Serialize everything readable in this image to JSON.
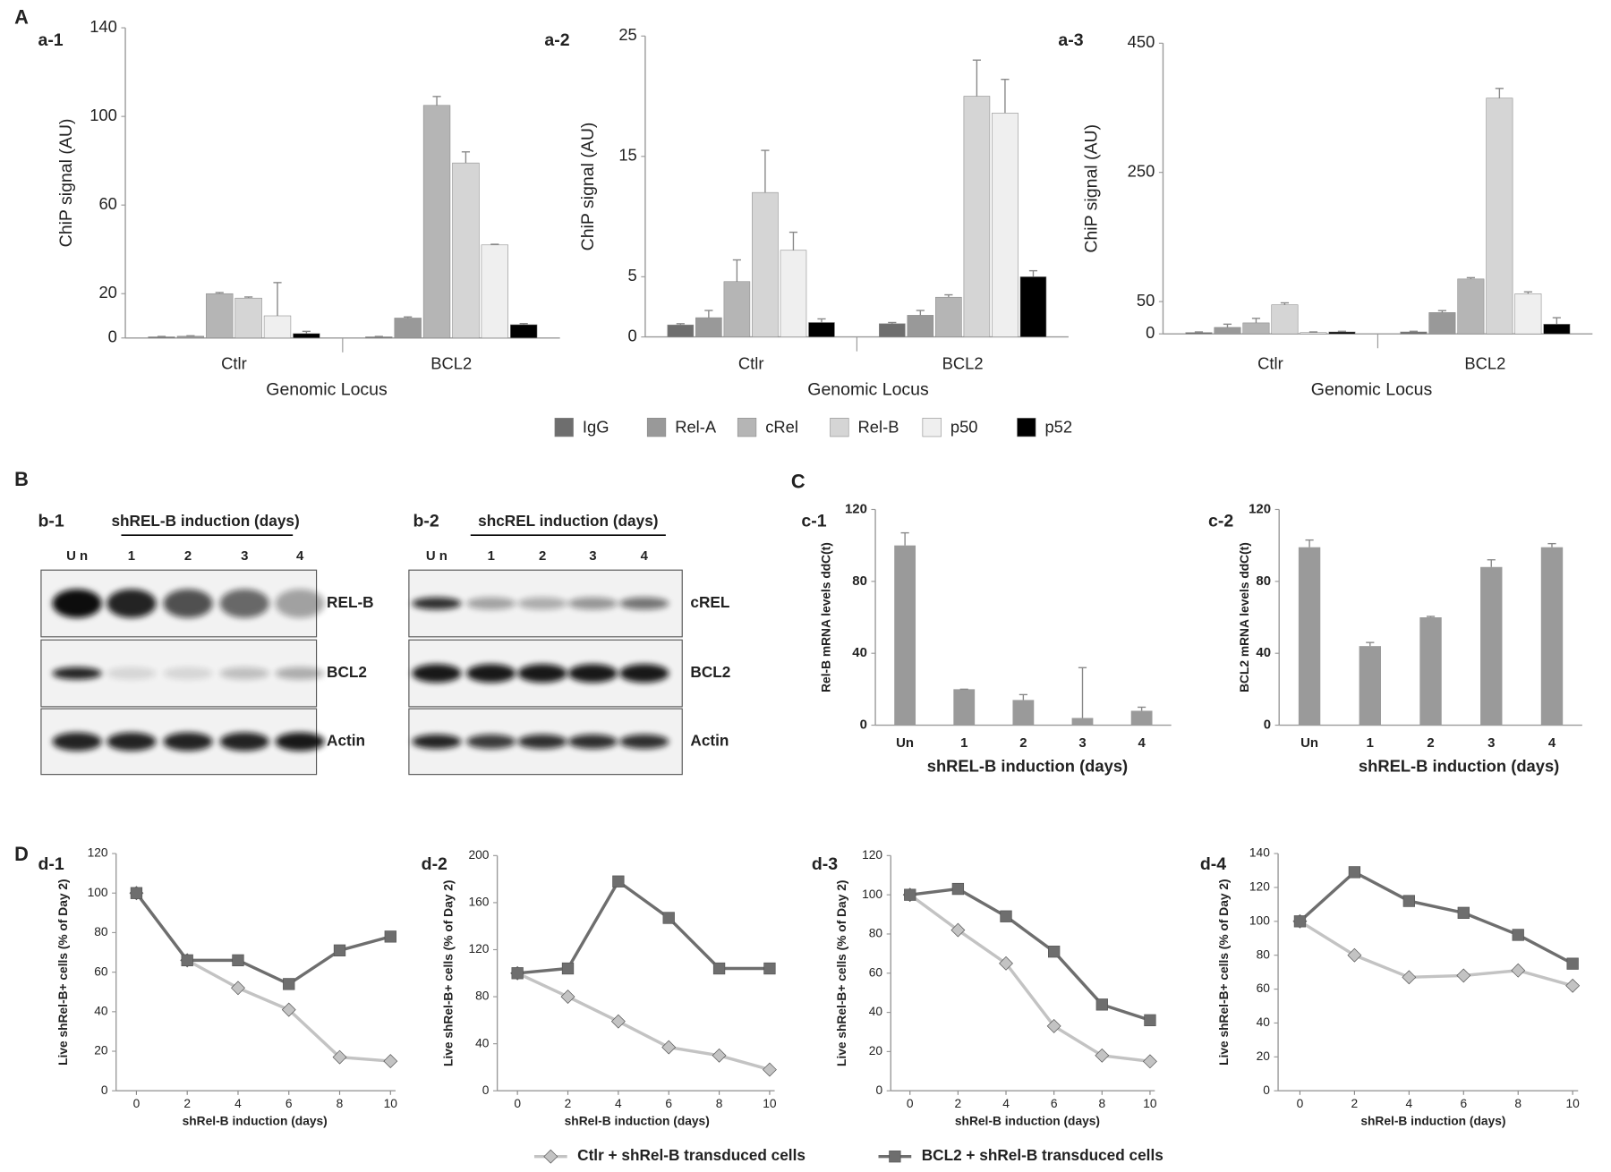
{
  "panels": [
    "A",
    "B",
    "C",
    "D"
  ],
  "blots": [
    {
      "label": "b-1",
      "title": "shREL-B induction (days)",
      "lanes": [
        "U n",
        "1",
        "2",
        "3",
        "4"
      ],
      "rows": [
        "REL-B",
        "BCL2",
        "Actin"
      ]
    },
    {
      "label": "b-2",
      "title": "shcREL induction (days)",
      "lanes": [
        "U n",
        "1",
        "2",
        "3",
        "4"
      ],
      "rows": [
        "cREL",
        "BCL2",
        "Actin"
      ]
    }
  ],
  "chart_data": [
    {
      "type": "bar",
      "label": "a-1",
      "y_label": "ChiP signal (AU)",
      "x_label": "Genomic Locus",
      "categories": [
        "Ctlr",
        "BCL2"
      ],
      "ylim": [
        0,
        140
      ],
      "yticks": [
        0,
        20,
        60,
        100,
        140
      ],
      "series": [
        {
          "name": "IgG",
          "color": "#6e6e6e",
          "values": [
            0.5,
            0.5
          ],
          "errors": [
            0.2,
            0.2
          ]
        },
        {
          "name": "Rel-A",
          "color": "#999999",
          "values": [
            0.8,
            9
          ],
          "errors": [
            0.2,
            0.5
          ]
        },
        {
          "name": "cRel",
          "color": "#b5b5b5",
          "values": [
            20,
            105
          ],
          "errors": [
            0.5,
            4
          ]
        },
        {
          "name": "Rel-B",
          "color": "#d5d5d5",
          "values": [
            18,
            79
          ],
          "errors": [
            0.5,
            5
          ]
        },
        {
          "name": "p50",
          "color": "#efefef",
          "values": [
            10,
            42
          ],
          "errors": [
            15,
            0.3
          ]
        },
        {
          "name": "p52",
          "color": "#000000",
          "values": [
            2,
            6
          ],
          "errors": [
            1,
            0.5
          ]
        }
      ]
    },
    {
      "type": "bar",
      "label": "a-2",
      "y_label": "ChiP signal (AU)",
      "x_label": "Genomic Locus",
      "categories": [
        "Ctlr",
        "BCL2"
      ],
      "ylim": [
        0,
        25
      ],
      "yticks": [
        0,
        5,
        15,
        25
      ],
      "series": [
        {
          "color": "#6e6e6e",
          "values": [
            1,
            1.1
          ],
          "errors": [
            0.1,
            0.1
          ]
        },
        {
          "color": "#999999",
          "values": [
            1.6,
            1.8
          ],
          "errors": [
            0.6,
            0.4
          ]
        },
        {
          "color": "#b5b5b5",
          "values": [
            4.6,
            3.3
          ],
          "errors": [
            1.8,
            0.2
          ]
        },
        {
          "color": "#d5d5d5",
          "values": [
            12,
            20
          ],
          "errors": [
            3.5,
            3
          ]
        },
        {
          "color": "#efefef",
          "values": [
            7.2,
            18.6
          ],
          "errors": [
            1.5,
            2.8
          ]
        },
        {
          "color": "#000000",
          "values": [
            1.2,
            5
          ],
          "errors": [
            0.3,
            0.5
          ]
        }
      ]
    },
    {
      "type": "bar",
      "label": "a-3",
      "y_label": "ChiP signal (AU)",
      "x_label": "Genomic Locus",
      "categories": [
        "Ctlr",
        "BCL2"
      ],
      "ylim": [
        0,
        450
      ],
      "yticks": [
        0,
        50,
        250,
        450
      ],
      "series": [
        {
          "color": "#6e6e6e",
          "values": [
            2,
            3
          ],
          "errors": [
            1,
            1
          ]
        },
        {
          "color": "#999999",
          "values": [
            10,
            33
          ],
          "errors": [
            5,
            3
          ]
        },
        {
          "color": "#b5b5b5",
          "values": [
            17,
            85
          ],
          "errors": [
            7,
            2
          ]
        },
        {
          "color": "#d5d5d5",
          "values": [
            45,
            365
          ],
          "errors": [
            3,
            15
          ]
        },
        {
          "color": "#efefef",
          "values": [
            2,
            62
          ],
          "errors": [
            1,
            3
          ]
        },
        {
          "color": "#000000",
          "values": [
            3,
            15
          ],
          "errors": [
            1,
            10
          ]
        }
      ]
    },
    {
      "type": "bar",
      "label": "c-1",
      "y_label": "Rel-B mRNA levels ddC(t)",
      "x_label": "shREL-B induction (days)",
      "categories": [
        "Un",
        "1",
        "2",
        "3",
        "4"
      ],
      "values": [
        100,
        20,
        14,
        4,
        8
      ],
      "errors": [
        7,
        0,
        3,
        28,
        2
      ],
      "color": "#9a9a9a",
      "ylim": [
        0,
        120
      ],
      "yticks": [
        0,
        40,
        80,
        120
      ]
    },
    {
      "type": "bar",
      "label": "c-2",
      "y_label": "BCL2 mRNA levels ddC(t)",
      "x_label": "shREL-B induction (days)",
      "categories": [
        "Un",
        "1",
        "2",
        "3",
        "4"
      ],
      "values": [
        99,
        44,
        60,
        88,
        99
      ],
      "errors": [
        4,
        2,
        0.5,
        4,
        2
      ],
      "color": "#9a9a9a",
      "ylim": [
        0,
        120
      ],
      "yticks": [
        0,
        40,
        80,
        120
      ]
    },
    {
      "type": "line",
      "label": "d-1",
      "y_label": "Live shRel-B+ cells (% of Day 2)",
      "x_label": "shRel-B induction (days)",
      "x": [
        0,
        2,
        4,
        6,
        8,
        10
      ],
      "xlim": [
        -0.8,
        10.2
      ],
      "xticks": [
        0,
        2,
        4,
        6,
        8,
        10
      ],
      "ylim": [
        0,
        120
      ],
      "yticks": [
        0,
        20,
        40,
        60,
        80,
        100,
        120
      ],
      "series": [
        {
          "name": "Ctlr + shRel-B transduced cells",
          "color": "#c3c3c3",
          "marker": "diamond",
          "values": [
            100,
            66,
            52,
            41,
            17,
            15
          ]
        },
        {
          "name": "BCL2 + shRel-B transduced cells",
          "color": "#6e6e6e",
          "marker": "square",
          "values": [
            100,
            66,
            66,
            54,
            71,
            78
          ]
        }
      ]
    },
    {
      "type": "line",
      "label": "d-2",
      "y_label": "Live shRel-B+ cells (% of Day 2)",
      "x_label": "shRel-B induction (days)",
      "x": [
        0,
        2,
        4,
        6,
        8,
        10
      ],
      "xlim": [
        -0.8,
        10.2
      ],
      "xticks": [
        0,
        2,
        4,
        6,
        8,
        10
      ],
      "ylim": [
        0,
        200
      ],
      "yticks": [
        0,
        40,
        80,
        120,
        160,
        200
      ],
      "series": [
        {
          "color": "#c3c3c3",
          "marker": "diamond",
          "values": [
            100,
            80,
            59,
            37,
            30,
            18
          ]
        },
        {
          "color": "#6e6e6e",
          "marker": "square",
          "values": [
            100,
            104,
            178,
            147,
            104,
            104
          ]
        }
      ]
    },
    {
      "type": "line",
      "label": "d-3",
      "y_label": "Live shRel-B+ cells (% of Day 2)",
      "x_label": "shRel-B induction (days)",
      "x": [
        0,
        2,
        4,
        6,
        8,
        10
      ],
      "xlim": [
        -0.8,
        10.2
      ],
      "xticks": [
        0,
        2,
        4,
        6,
        8,
        10
      ],
      "ylim": [
        0,
        120
      ],
      "yticks": [
        0,
        20,
        40,
        60,
        80,
        100,
        120
      ],
      "series": [
        {
          "color": "#c3c3c3",
          "marker": "diamond",
          "values": [
            100,
            82,
            65,
            33,
            18,
            15
          ]
        },
        {
          "color": "#6e6e6e",
          "marker": "square",
          "values": [
            100,
            103,
            89,
            71,
            44,
            36
          ]
        }
      ]
    },
    {
      "type": "line",
      "label": "d-4",
      "y_label": "Live shRel-B+ cells (% of Day 2)",
      "x_label": "shRel-B induction (days)",
      "x": [
        0,
        2,
        4,
        6,
        8,
        10
      ],
      "xlim": [
        -0.8,
        10.2
      ],
      "xticks": [
        0,
        2,
        4,
        6,
        8,
        10
      ],
      "ylim": [
        0,
        140
      ],
      "yticks": [
        0,
        20,
        40,
        60,
        80,
        100,
        120,
        140
      ],
      "series": [
        {
          "color": "#c3c3c3",
          "marker": "diamond",
          "values": [
            100,
            80,
            67,
            68,
            71,
            62
          ]
        },
        {
          "color": "#6e6e6e",
          "marker": "square",
          "values": [
            100,
            129,
            112,
            105,
            92,
            75
          ]
        }
      ]
    }
  ]
}
